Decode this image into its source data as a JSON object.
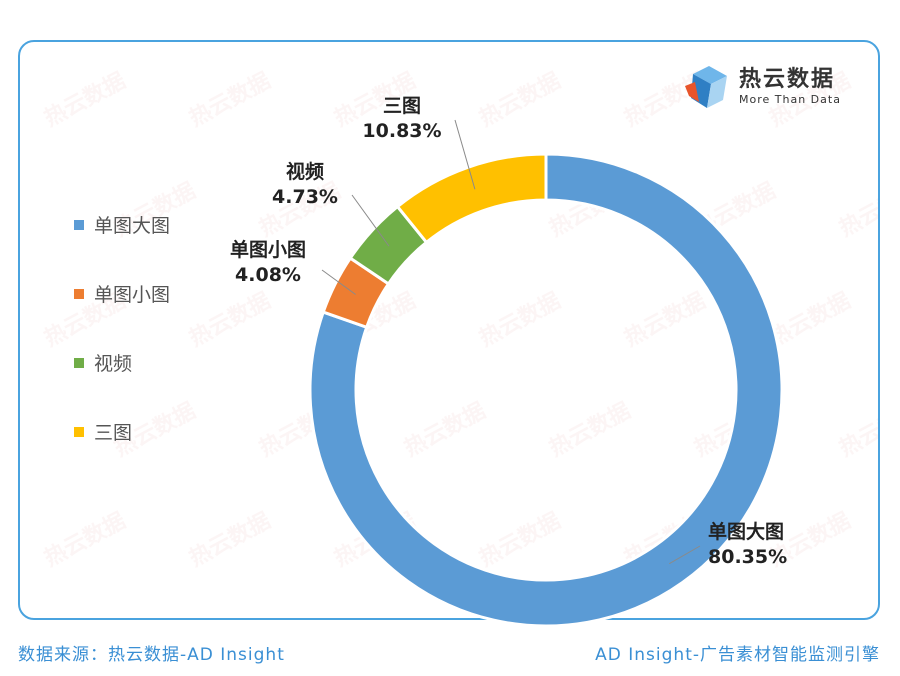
{
  "brand": {
    "name_cn": "热云数据",
    "name_en": "More Than Data"
  },
  "watermark": "热云数据",
  "chart_data": {
    "type": "pie",
    "donut": true,
    "legend_position": "left",
    "categories": [
      "单图大图",
      "单图小图",
      "视频",
      "三图"
    ],
    "values": [
      80.35,
      4.08,
      4.73,
      10.83
    ],
    "labels": [
      "80.35%",
      "4.08%",
      "4.73%",
      "10.83%"
    ],
    "colors": [
      "#5b9bd5",
      "#ed7d31",
      "#70ad47",
      "#ffc000"
    ]
  },
  "footer": {
    "source": "数据来源：热云数据-AD Insight",
    "tagline": "AD Insight-广告素材智能监测引擎"
  }
}
